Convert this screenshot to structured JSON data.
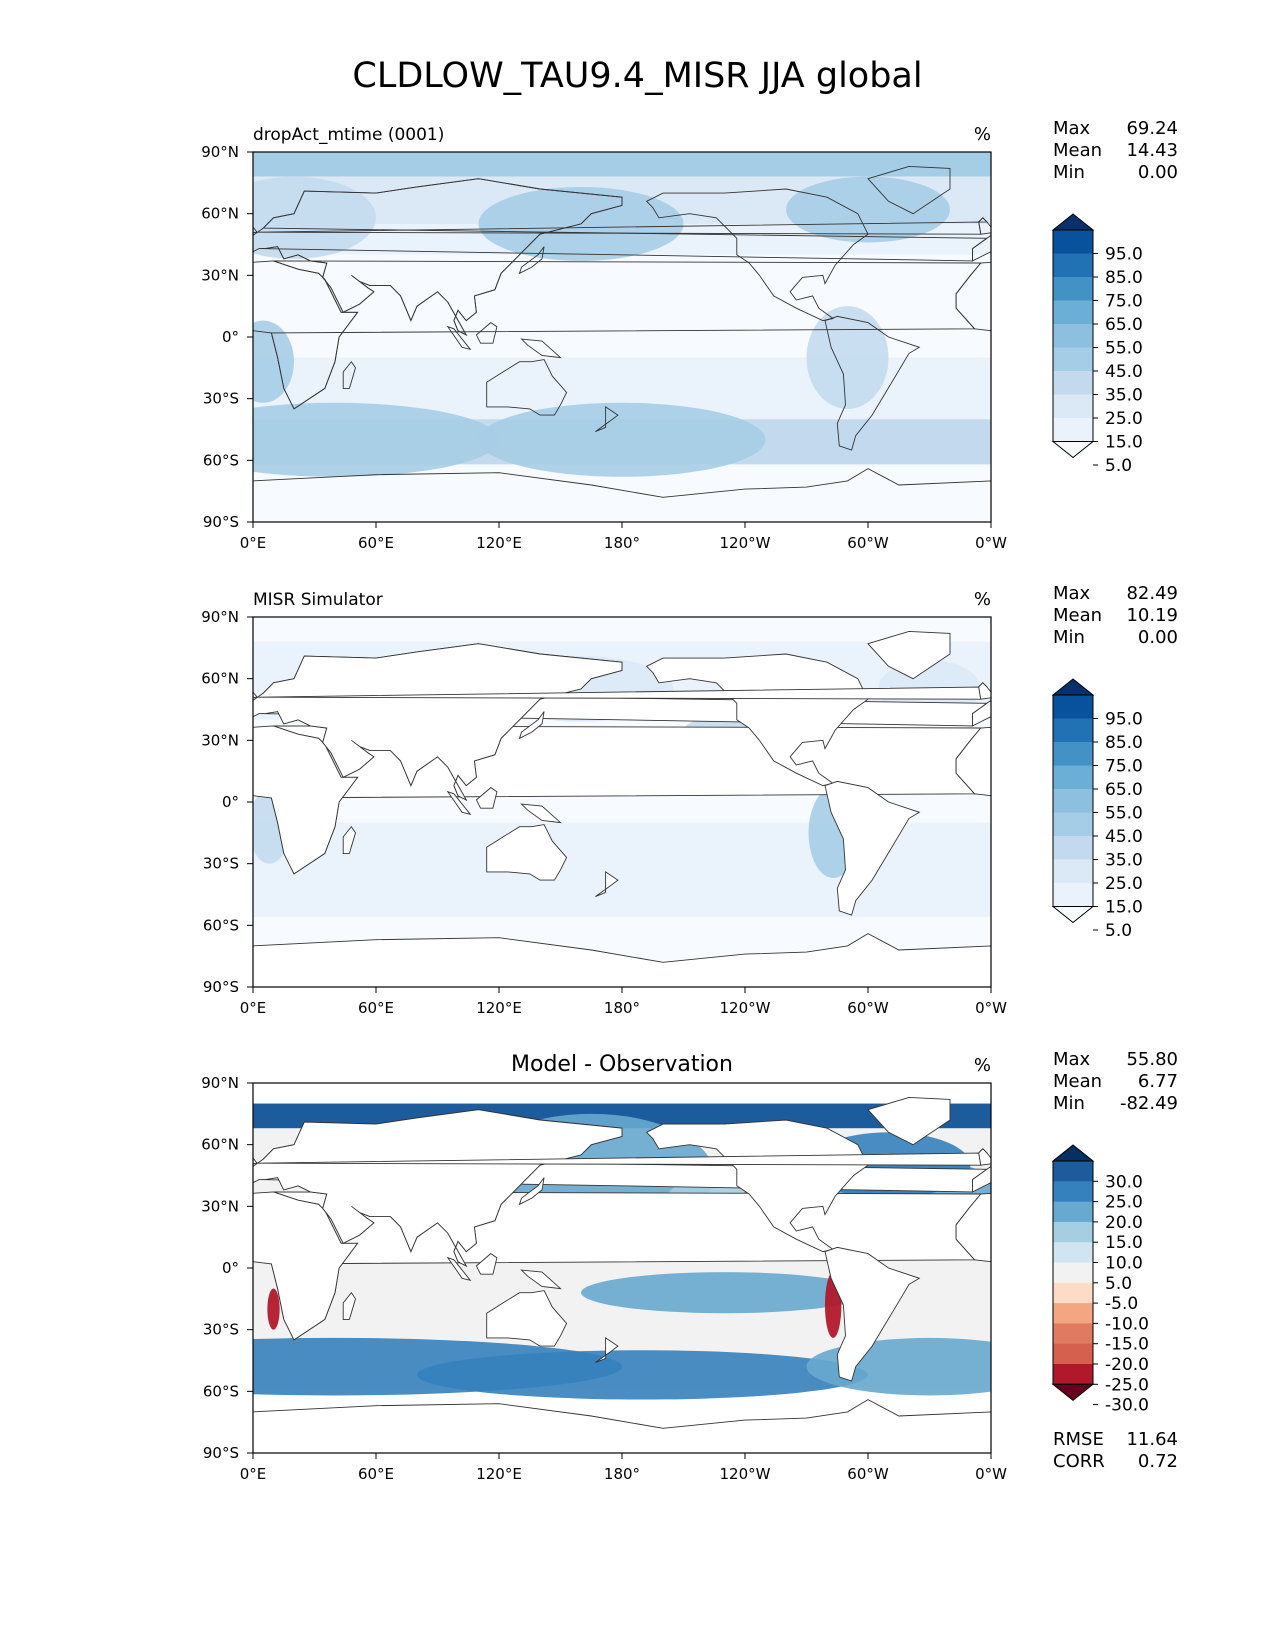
{
  "figure": {
    "title": "CLDLOW_TAU9.4_MISR JJA global"
  },
  "axes": {
    "x_ticks": [
      "0°E",
      "60°E",
      "120°E",
      "180°",
      "120°W",
      "60°W",
      "0°W"
    ],
    "y_ticks": [
      "90°N",
      "60°N",
      "30°N",
      "0°",
      "30°S",
      "60°S",
      "90°S"
    ]
  },
  "panels": [
    {
      "id": "test",
      "left_title": "dropAct_mtime (0001)",
      "center_title": "",
      "units": "%",
      "stats": [
        {
          "label": "Max",
          "value": "69.24"
        },
        {
          "label": "Mean",
          "value": "14.43"
        },
        {
          "label": "Min",
          "value": "0.00"
        }
      ],
      "colorbar": {
        "labels": [
          "95.0",
          "85.0",
          "75.0",
          "65.0",
          "55.0",
          "45.0",
          "35.0",
          "25.0",
          "15.0",
          "5.0"
        ],
        "colors": [
          "#08306b",
          "#08519c",
          "#2171b5",
          "#4292c6",
          "#6baed6",
          "#8dbfdf",
          "#a6cde6",
          "#c3daee",
          "#dbe9f6",
          "#eaf2fb",
          "#f7fbff"
        ]
      },
      "bottom_stats": []
    },
    {
      "id": "reference",
      "left_title": "MISR Simulator",
      "center_title": "",
      "units": "%",
      "stats": [
        {
          "label": "Max",
          "value": "82.49"
        },
        {
          "label": "Mean",
          "value": "10.19"
        },
        {
          "label": "Min",
          "value": "0.00"
        }
      ],
      "colorbar": {
        "labels": [
          "95.0",
          "85.0",
          "75.0",
          "65.0",
          "55.0",
          "45.0",
          "35.0",
          "25.0",
          "15.0",
          "5.0"
        ],
        "colors": [
          "#08306b",
          "#08519c",
          "#2171b5",
          "#4292c6",
          "#6baed6",
          "#8dbfdf",
          "#a6cde6",
          "#c3daee",
          "#dbe9f6",
          "#eaf2fb",
          "#f7fbff"
        ]
      },
      "bottom_stats": []
    },
    {
      "id": "difference",
      "left_title": "",
      "center_title": "Model - Observation",
      "units": "%",
      "stats": [
        {
          "label": "Max",
          "value": "55.80"
        },
        {
          "label": "Mean",
          "value": "6.77"
        },
        {
          "label": "Min",
          "value": "-82.49"
        }
      ],
      "colorbar": {
        "labels": [
          "30.0",
          "25.0",
          "20.0",
          "15.0",
          "10.0",
          "5.0",
          "-5.0",
          "-10.0",
          "-15.0",
          "-20.0",
          "-25.0",
          "-30.0"
        ],
        "colors": [
          "#053061",
          "#1c5c9c",
          "#3581bd",
          "#67a9cf",
          "#a6cee3",
          "#d1e5f0",
          "#f2f2f2",
          "#fddbc7",
          "#f4a582",
          "#e07b62",
          "#d6604d",
          "#b2182b",
          "#67001f"
        ]
      },
      "bottom_stats": [
        {
          "label": "RMSE",
          "value": "11.64"
        },
        {
          "label": "CORR",
          "value": "0.72"
        }
      ]
    }
  ],
  "map_colors": {
    "frame": "#000000",
    "coastline": "#333333",
    "land": "#ffffff"
  }
}
